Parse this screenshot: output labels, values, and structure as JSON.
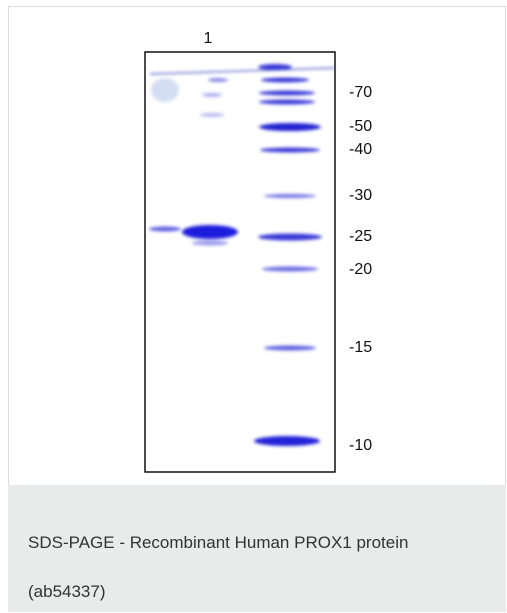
{
  "figure": {
    "lane_label": "1",
    "markers": [
      "-70",
      "-50",
      "-40",
      "-30",
      "-25",
      "-20",
      "-15",
      "-10"
    ]
  },
  "caption": {
    "lines": [
      "SDS-PAGE - Recombinant Human PROX1 protein",
      "(ab54337)"
    ]
  }
}
